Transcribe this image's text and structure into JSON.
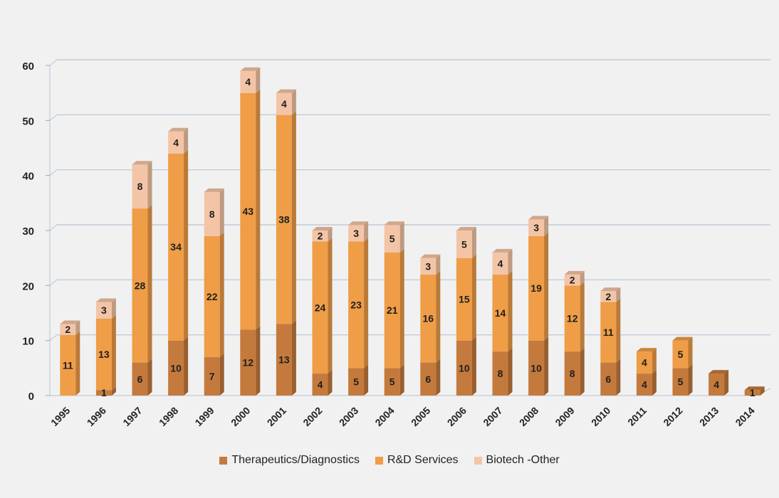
{
  "chart_data": {
    "type": "bar",
    "stacked": true,
    "categories": [
      "1995",
      "1996",
      "1997",
      "1998",
      "1999",
      "2000",
      "2001",
      "2002",
      "2003",
      "2004",
      "2005",
      "2006",
      "2007",
      "2008",
      "2009",
      "2010",
      "2011",
      "2012",
      "2013",
      "2014"
    ],
    "series": [
      {
        "name": "Therapeutics/Diagnostics",
        "color": "#c47a3c",
        "values": [
          0,
          1,
          6,
          10,
          7,
          12,
          13,
          4,
          5,
          5,
          6,
          10,
          8,
          10,
          8,
          6,
          4,
          5,
          4,
          1
        ]
      },
      {
        "name": "R&D Services",
        "color": "#ef9d47",
        "values": [
          11,
          13,
          28,
          34,
          22,
          43,
          38,
          24,
          23,
          21,
          16,
          15,
          14,
          19,
          12,
          11,
          4,
          5,
          0,
          0
        ]
      },
      {
        "name": "Biotech -Other",
        "color": "#f3c5a6",
        "values": [
          2,
          3,
          8,
          4,
          8,
          4,
          4,
          2,
          3,
          5,
          3,
          5,
          4,
          3,
          2,
          2,
          0,
          0,
          0,
          0
        ]
      }
    ],
    "ylim": [
      0,
      60
    ],
    "yticks": [
      0,
      10,
      20,
      30,
      40,
      50,
      60
    ],
    "grid": true,
    "legend_position": "bottom",
    "title": "",
    "xlabel": "",
    "ylabel": ""
  }
}
